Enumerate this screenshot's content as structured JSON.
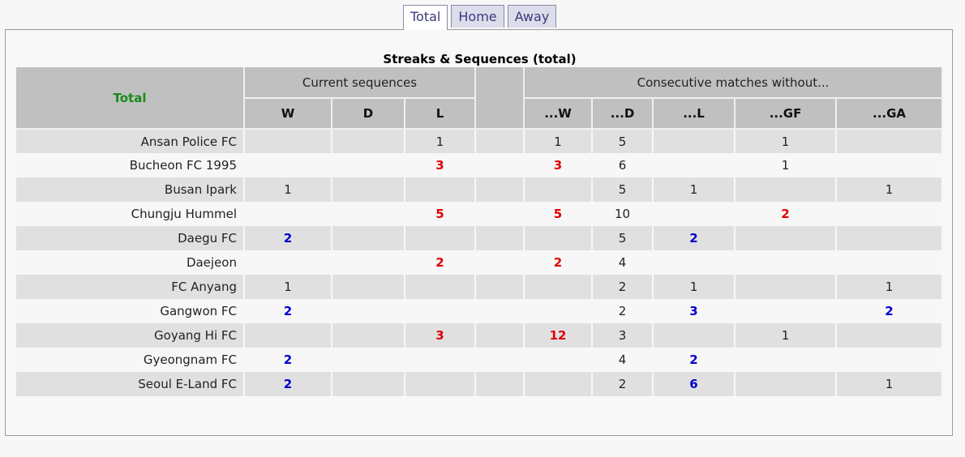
{
  "tabs": [
    {
      "label": "Total",
      "active": true
    },
    {
      "label": "Home",
      "active": false
    },
    {
      "label": "Away",
      "active": false
    }
  ],
  "caption": "Streaks & Sequences (total)",
  "header": {
    "team": "Total",
    "current_sequences": "Current sequences",
    "consecutive_without": "Consecutive matches without...",
    "current_cols": [
      "W",
      "D",
      "L"
    ],
    "without_cols": [
      "...W",
      "...D",
      "...L",
      "...GF",
      "...GA"
    ]
  },
  "colors": {
    "highlight_red": "#e00000",
    "highlight_blue": "#0000cc",
    "team_header": "#1a8a1a"
  },
  "rows": [
    {
      "team": "Ansan Police FC",
      "w": "",
      "d": "",
      "l": "1",
      "nw": "1",
      "nd": "5",
      "nl": "",
      "ngf": "1",
      "nga": "",
      "hl": {}
    },
    {
      "team": "Bucheon FC 1995",
      "w": "",
      "d": "",
      "l": "3",
      "nw": "3",
      "nd": "6",
      "nl": "",
      "ngf": "1",
      "nga": "",
      "hl": {
        "l": "red",
        "nw": "red"
      }
    },
    {
      "team": "Busan Ipark",
      "w": "1",
      "d": "",
      "l": "",
      "nw": "",
      "nd": "5",
      "nl": "1",
      "ngf": "",
      "nga": "1",
      "hl": {}
    },
    {
      "team": "Chungju Hummel",
      "w": "",
      "d": "",
      "l": "5",
      "nw": "5",
      "nd": "10",
      "nl": "",
      "ngf": "2",
      "nga": "",
      "hl": {
        "l": "red",
        "nw": "red",
        "ngf": "red"
      }
    },
    {
      "team": "Daegu FC",
      "w": "2",
      "d": "",
      "l": "",
      "nw": "",
      "nd": "5",
      "nl": "2",
      "ngf": "",
      "nga": "",
      "hl": {
        "w": "blue",
        "nl": "blue"
      }
    },
    {
      "team": "Daejeon",
      "w": "",
      "d": "",
      "l": "2",
      "nw": "2",
      "nd": "4",
      "nl": "",
      "ngf": "",
      "nga": "",
      "hl": {
        "l": "red",
        "nw": "red"
      }
    },
    {
      "team": "FC Anyang",
      "w": "1",
      "d": "",
      "l": "",
      "nw": "",
      "nd": "2",
      "nl": "1",
      "ngf": "",
      "nga": "1",
      "hl": {}
    },
    {
      "team": "Gangwon FC",
      "w": "2",
      "d": "",
      "l": "",
      "nw": "",
      "nd": "2",
      "nl": "3",
      "ngf": "",
      "nga": "2",
      "hl": {
        "w": "blue",
        "nl": "blue",
        "nga": "blue"
      }
    },
    {
      "team": "Goyang Hi FC",
      "w": "",
      "d": "",
      "l": "3",
      "nw": "12",
      "nd": "3",
      "nl": "",
      "ngf": "1",
      "nga": "",
      "hl": {
        "l": "red",
        "nw": "red"
      }
    },
    {
      "team": "Gyeongnam FC",
      "w": "2",
      "d": "",
      "l": "",
      "nw": "",
      "nd": "4",
      "nl": "2",
      "ngf": "",
      "nga": "",
      "hl": {
        "w": "blue",
        "nl": "blue"
      }
    },
    {
      "team": "Seoul E-Land FC",
      "w": "2",
      "d": "",
      "l": "",
      "nw": "",
      "nd": "2",
      "nl": "6",
      "ngf": "",
      "nga": "1",
      "hl": {
        "w": "blue",
        "nl": "blue"
      }
    }
  ]
}
